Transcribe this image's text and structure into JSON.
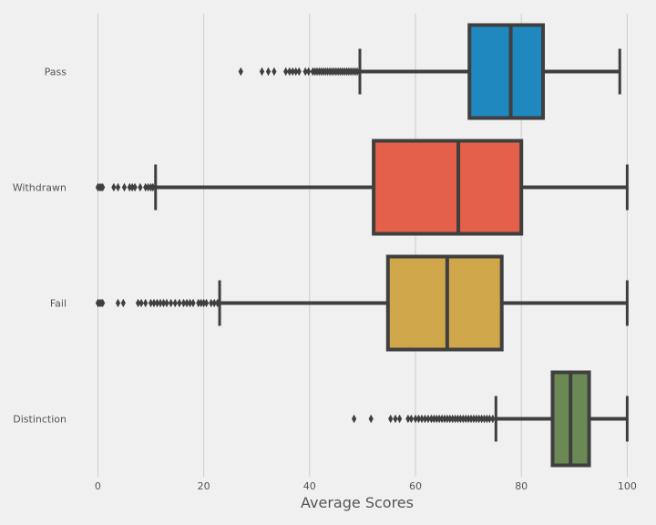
{
  "chart_data": {
    "type": "boxplot",
    "title": "",
    "xlabel": "Average Scores",
    "ylabel": "",
    "xlim": [
      -3,
      102
    ],
    "xticks": [
      0,
      20,
      40,
      60,
      80,
      100
    ],
    "grid": "vertical",
    "orientation": "horizontal",
    "line_color": "#3f3f3f",
    "categories": [
      "Pass",
      "Withdrawn",
      "Fail",
      "Distinction"
    ],
    "series": [
      {
        "name": "Pass",
        "color": "#1f88bf",
        "whisker_low": 49.5,
        "q1": 70.2,
        "median": 78.0,
        "q3": 84.1,
        "whisker_high": 98.6,
        "outliers": [
          27,
          31,
          32.2,
          33.3,
          35.5,
          36.2,
          36.8,
          37.4,
          38,
          39.2,
          39.8,
          40.6,
          41,
          41.4,
          41.8,
          42.2,
          42.6,
          43,
          43.4,
          43.8,
          44.2,
          44.6,
          45,
          45.4,
          45.8,
          46.2,
          46.6,
          47,
          47.4,
          47.8,
          48.2,
          48.6,
          49
        ]
      },
      {
        "name": "Withdrawn",
        "color": "#e5604a",
        "whisker_low": 10.9,
        "q1": 52.1,
        "median": 68.1,
        "q3": 80.0,
        "whisker_high": 100.0,
        "outliers": [
          0,
          0.3,
          0.6,
          0.9,
          3.0,
          3.8,
          5.0,
          6.0,
          6.5,
          7.0,
          8.0,
          9.0,
          9.5,
          10.0,
          10.4
        ]
      },
      {
        "name": "Fail",
        "color": "#d0a64b",
        "whisker_low": 23.0,
        "q1": 54.8,
        "median": 66.0,
        "q3": 76.3,
        "whisker_high": 100.0,
        "outliers": [
          0,
          0.3,
          0.6,
          0.9,
          3.8,
          4.8,
          7.6,
          8.2,
          9.0,
          10.0,
          10.6,
          11.2,
          11.8,
          12.4,
          13.0,
          13.8,
          14.6,
          15.4,
          16.2,
          16.8,
          17.4,
          18.0,
          19.0,
          19.5,
          20.0,
          20.5,
          21.4,
          22.0,
          22.6
        ]
      },
      {
        "name": "Distinction",
        "color": "#6b8954",
        "whisker_low": 75.2,
        "q1": 85.9,
        "median": 89.3,
        "q3": 92.8,
        "whisker_high": 100.0,
        "outliers": [
          48.4,
          51.6,
          55.3,
          56.2,
          57.0,
          58.6,
          59.2,
          60.0,
          60.6,
          61.2,
          61.8,
          62.4,
          63.0,
          63.5,
          64.0,
          64.5,
          65.0,
          65.5,
          66.0,
          66.5,
          67.0,
          67.5,
          68.0,
          68.5,
          69.0,
          69.5,
          70.0,
          70.5,
          71.0,
          71.5,
          72.0,
          72.5,
          73.0,
          73.5,
          74.0,
          74.6
        ]
      }
    ]
  }
}
